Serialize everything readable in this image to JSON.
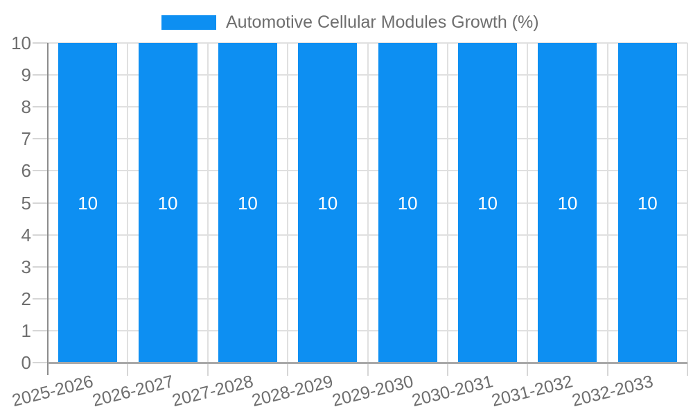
{
  "legend": {
    "label": "Automotive Cellular Modules Growth (%)"
  },
  "chart_data": {
    "type": "bar",
    "title": "Automotive Cellular Modules Growth (%)",
    "categories": [
      "2025-2026",
      "2026-2027",
      "2027-2028",
      "2028-2029",
      "2029-2030",
      "2030-2031",
      "2031-2032",
      "2032-2033"
    ],
    "values": [
      10,
      10,
      10,
      10,
      10,
      10,
      10,
      10
    ],
    "value_labels": [
      "10",
      "10",
      "10",
      "10",
      "10",
      "10",
      "10",
      "10"
    ],
    "xlabel": "",
    "ylabel": "",
    "ylim": [
      0,
      10
    ],
    "yticks": [
      0,
      1,
      2,
      3,
      4,
      5,
      6,
      7,
      8,
      9,
      10
    ],
    "grid": true,
    "legend_position": "top",
    "x_label_rotation_deg": -14,
    "colors": {
      "bar": "#0d8ff2",
      "grid": "#e0e0e0",
      "tick": "#d6d6d6",
      "y_axis": "#8c8c8c",
      "x_axis": "#a9a9a9",
      "text": "#6e6e6e",
      "value_label": "#ffffff",
      "background": "#ffffff"
    }
  }
}
